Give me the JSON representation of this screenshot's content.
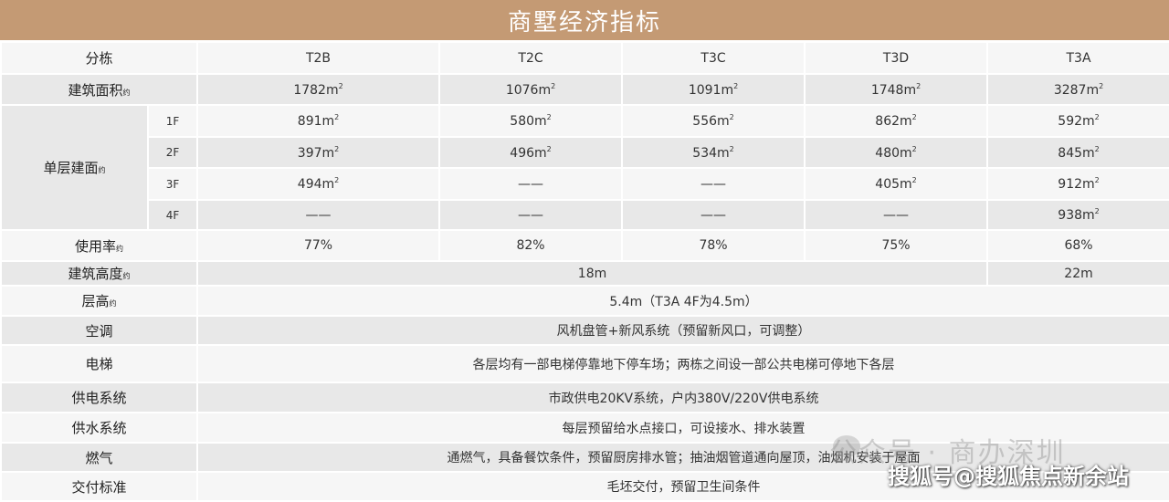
{
  "title": "商墅经济指标",
  "header": {
    "label": "分栋",
    "cols": [
      "T2B",
      "T2C",
      "T3C",
      "T3D",
      "T3A"
    ]
  },
  "yue": "约",
  "area": {
    "label": "建筑面积",
    "values": [
      "1782m",
      "1076m",
      "1091m",
      "1748m",
      "3287m"
    ]
  },
  "floor_area": {
    "label": "单层建面",
    "rows": [
      {
        "floor": "1F",
        "values": [
          "891m",
          "580m",
          "556m",
          "862m",
          "592m"
        ]
      },
      {
        "floor": "2F",
        "values": [
          "397m",
          "496m",
          "534m",
          "480m",
          "845m"
        ]
      },
      {
        "floor": "3F",
        "values": [
          "494m",
          "——",
          "——",
          "405m",
          "912m"
        ]
      },
      {
        "floor": "4F",
        "values": [
          "——",
          "——",
          "——",
          "——",
          "938m"
        ]
      }
    ]
  },
  "usage": {
    "label": "使用率",
    "values": [
      "77%",
      "82%",
      "78%",
      "75%",
      "68%"
    ]
  },
  "height": {
    "label": "建筑高度",
    "v1": "18m",
    "v2": "22m"
  },
  "floor_height": {
    "label": "层高",
    "value": "5.4m（T3A 4F为4.5m）"
  },
  "ac": {
    "label": "空调",
    "value": "风机盘管+新风系统（预留新风口，可调整）"
  },
  "elevator": {
    "label": "电梯",
    "value": "各层均有一部电梯停靠地下停车场；两栋之间设一部公共电梯可停地下各层"
  },
  "power": {
    "label": "供电系统",
    "value": "市政供电20KV系统，户内380V/220V供电系统"
  },
  "water": {
    "label": "供水系统",
    "value": "每层预留给水点接口，可设接水、排水装置"
  },
  "gas": {
    "label": "燃气",
    "value": "通燃气，具备餐饮条件，预留厨房排水管；抽油烟管道通向屋顶，油烟机安装于屋面"
  },
  "delivery": {
    "label": "交付标准",
    "value": "毛坯交付，预留卫生间条件"
  },
  "watermark1": "公众号 · 商办深圳",
  "watermark2": "搜狐号@搜狐焦点新余站",
  "colors": {
    "title_bg": "#c49a74",
    "row_dark": "#e8e8e8",
    "row_light": "#f6f6f6"
  }
}
